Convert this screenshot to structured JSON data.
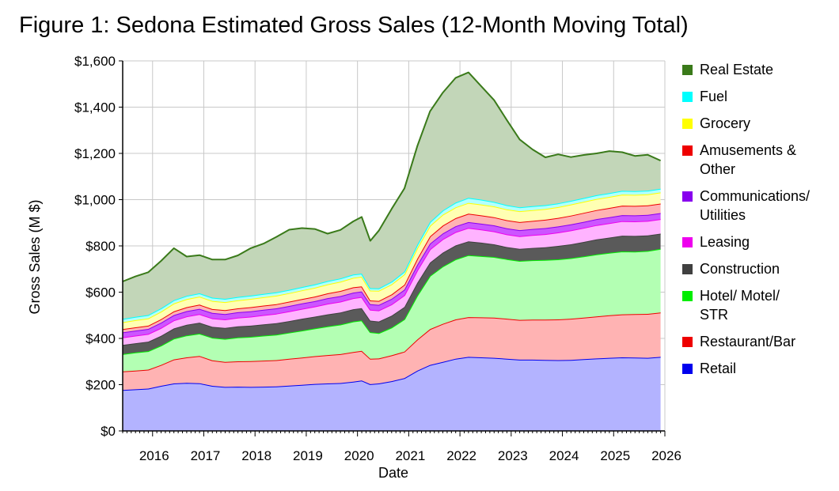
{
  "title": "Figure 1: Sedona Estimated Gross Sales (12-Month Moving Total)",
  "chart_data": {
    "type": "area",
    "stacked": true,
    "xlabel": "Date",
    "ylabel": "Gross Sales (M $)",
    "ylim": [
      0,
      1600
    ],
    "xlim": [
      "2015-06",
      "2026-01"
    ],
    "y_ticks": [
      "$0",
      "$200",
      "$400",
      "$600",
      "$800",
      "$1,000",
      "$1,200",
      "$1,400",
      "$1,600"
    ],
    "y_tick_values": [
      0,
      200,
      400,
      600,
      800,
      1000,
      1200,
      1400,
      1600
    ],
    "x_ticks": [
      "2016",
      "2017",
      "2018",
      "2019",
      "2020",
      "2021",
      "2022",
      "2023",
      "2024",
      "2025",
      "2026"
    ],
    "grid": true,
    "legend_position": "right",
    "dates": [
      "2015-06",
      "2015-09",
      "2015-12",
      "2016-03",
      "2016-06",
      "2016-09",
      "2016-12",
      "2017-03",
      "2017-06",
      "2017-09",
      "2017-12",
      "2018-03",
      "2018-06",
      "2018-09",
      "2018-12",
      "2019-03",
      "2019-06",
      "2019-09",
      "2019-12",
      "2020-02",
      "2020-04",
      "2020-06",
      "2020-09",
      "2020-12",
      "2021-03",
      "2021-06",
      "2021-09",
      "2021-12",
      "2022-03",
      "2022-06",
      "2022-09",
      "2022-12",
      "2023-03",
      "2023-06",
      "2023-09",
      "2023-12",
      "2024-03",
      "2024-06",
      "2024-09",
      "2024-12",
      "2025-03",
      "2025-06",
      "2025-09",
      "2025-12"
    ],
    "series": [
      {
        "name": "Retail",
        "color": "#0000ee",
        "fill": "#b3b3ff",
        "values": [
          177,
          180,
          183,
          195,
          205,
          208,
          206,
          195,
          190,
          191,
          190,
          191,
          192,
          196,
          199,
          203,
          205,
          207,
          213,
          218,
          202,
          205,
          215,
          228,
          260,
          285,
          298,
          312,
          320,
          318,
          316,
          312,
          308,
          308,
          307,
          306,
          307,
          310,
          313,
          316,
          318,
          317,
          316,
          320
        ]
      },
      {
        "name": "Restaurant/Bar",
        "color": "#ee0000",
        "fill": "#ffb3b3",
        "values": [
          80,
          81,
          82,
          90,
          104,
          110,
          118,
          110,
          108,
          110,
          112,
          113,
          114,
          116,
          118,
          120,
          123,
          125,
          128,
          128,
          110,
          108,
          112,
          115,
          135,
          155,
          165,
          170,
          172,
          173,
          174,
          173,
          172,
          173,
          174,
          176,
          178,
          180,
          182,
          184,
          186,
          188,
          190,
          192
        ]
      },
      {
        "name": "Hotel/ Motel/ STR",
        "color": "#00ee00",
        "fill": "#b3ffb3",
        "values": [
          75,
          78,
          80,
          84,
          90,
          95,
          97,
          98,
          100,
          103,
          105,
          108,
          110,
          113,
          117,
          120,
          124,
          128,
          132,
          132,
          115,
          110,
          120,
          140,
          190,
          230,
          248,
          260,
          268,
          265,
          262,
          258,
          255,
          257,
          258,
          260,
          262,
          265,
          268,
          270,
          272,
          270,
          272,
          275
        ]
      },
      {
        "name": "Construction",
        "color": "#404040",
        "fill": "#5a5a5a",
        "values": [
          40,
          40,
          41,
          42,
          44,
          46,
          47,
          47,
          47,
          48,
          48,
          49,
          50,
          50,
          51,
          51,
          52,
          52,
          53,
          53,
          50,
          50,
          51,
          53,
          55,
          58,
          60,
          60,
          60,
          58,
          55,
          52,
          52,
          53,
          55,
          58,
          60,
          62,
          65,
          66,
          68,
          68,
          67,
          66
        ]
      },
      {
        "name": "Leasing",
        "color": "#ee00ee",
        "fill": "#ffb3ff",
        "values": [
          32,
          33,
          33,
          34,
          35,
          36,
          37,
          37,
          37,
          38,
          39,
          40,
          41,
          42,
          43,
          44,
          46,
          47,
          48,
          48,
          47,
          48,
          49,
          51,
          54,
          57,
          58,
          58,
          58,
          57,
          56,
          55,
          55,
          56,
          57,
          58,
          60,
          61,
          62,
          62,
          63,
          63,
          63,
          63
        ]
      },
      {
        "name": "Communications/ Utilities",
        "color": "#8800ee",
        "fill": "#cc55ff",
        "values": [
          22,
          22,
          22,
          23,
          23,
          23,
          23,
          23,
          23,
          23,
          23,
          23,
          23,
          23,
          23,
          23,
          24,
          24,
          24,
          24,
          24,
          24,
          24,
          24,
          24,
          25,
          25,
          25,
          25,
          25,
          26,
          26,
          26,
          26,
          26,
          26,
          26,
          26,
          26,
          26,
          26,
          26,
          26,
          26
        ]
      },
      {
        "name": "Amusements & Other",
        "color": "#ee0000",
        "fill": "#ffb3b3",
        "values": [
          14,
          14,
          14,
          15,
          16,
          17,
          18,
          17,
          17,
          17,
          18,
          18,
          18,
          19,
          19,
          20,
          21,
          22,
          23,
          22,
          16,
          17,
          19,
          21,
          26,
          31,
          34,
          35,
          36,
          36,
          35,
          35,
          35,
          35,
          36,
          37,
          38,
          39,
          39,
          40,
          41,
          41,
          41,
          41
        ]
      },
      {
        "name": "Grocery",
        "color": "#ffff00",
        "fill": "#ffffb3",
        "values": [
          30,
          31,
          32,
          33,
          34,
          35,
          35,
          35,
          35,
          35,
          36,
          36,
          37,
          37,
          38,
          38,
          39,
          40,
          41,
          42,
          43,
          44,
          44,
          45,
          46,
          46,
          47,
          47,
          47,
          47,
          47,
          47,
          47,
          47,
          47,
          47,
          48,
          48,
          48,
          48,
          48,
          48,
          48,
          48
        ]
      },
      {
        "name": "Fuel",
        "color": "#00ffff",
        "fill": "#b3ffff",
        "values": [
          14,
          14,
          14,
          14,
          14,
          14,
          14,
          14,
          14,
          14,
          14,
          14,
          14,
          14,
          14,
          14,
          14,
          14,
          14,
          13,
          10,
          10,
          11,
          12,
          14,
          16,
          18,
          20,
          22,
          21,
          19,
          18,
          17,
          17,
          16,
          16,
          16,
          16,
          16,
          16,
          16,
          16,
          16,
          16
        ]
      },
      {
        "name": "Real Estate",
        "color": "#3a7a1a",
        "fill": "#c2d6b8",
        "values": [
          162,
          175,
          185,
          205,
          225,
          170,
          165,
          165,
          170,
          180,
          205,
          218,
          240,
          260,
          255,
          240,
          205,
          210,
          230,
          245,
          205,
          250,
          315,
          360,
          427,
          479,
          510,
          540,
          542,
          490,
          440,
          368,
          293,
          245,
          207,
          212,
          189,
          186,
          181,
          182,
          167,
          152,
          155,
          122
        ]
      }
    ]
  }
}
